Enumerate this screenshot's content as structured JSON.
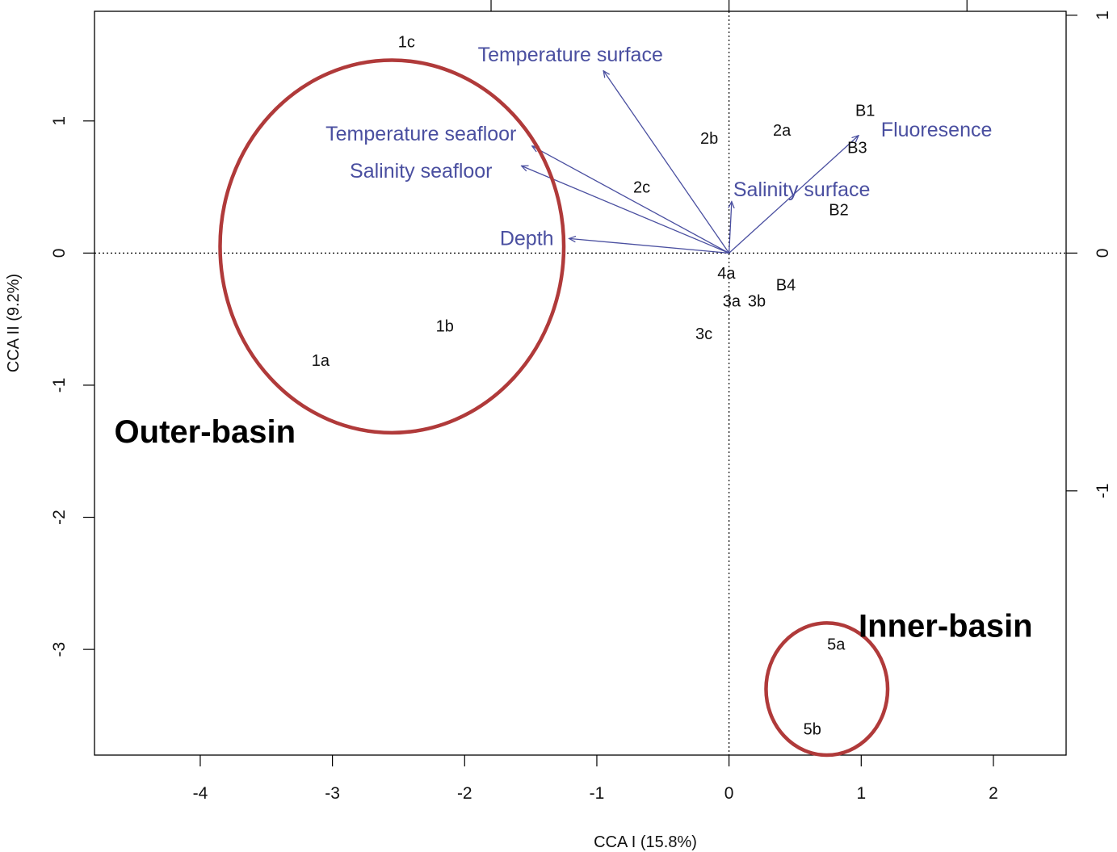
{
  "chart_data": {
    "type": "scatter",
    "title": "",
    "xlabel": "CCA I (15.8%)",
    "ylabel": "CCA II (9.2%)",
    "xlim": [
      -4.8,
      2.55
    ],
    "ylim": [
      -3.8,
      1.83
    ],
    "x_ticks": [
      -4,
      -3,
      -2,
      -1,
      0,
      1,
      2
    ],
    "y_ticks": [
      -3,
      -2,
      -1,
      0,
      1
    ],
    "secondary_axis": {
      "ticks": [
        -1,
        0,
        1
      ],
      "scale_per_unit": 1.8,
      "top_tick_positions": [
        -1.8,
        0,
        1.8
      ]
    },
    "reference_lines": {
      "x": 0,
      "y": 0,
      "style": "dotted"
    },
    "grid": false,
    "sites": [
      {
        "label": "1c",
        "x": -2.44,
        "y": 1.6
      },
      {
        "label": "1b",
        "x": -2.15,
        "y": -0.55
      },
      {
        "label": "1a",
        "x": -3.09,
        "y": -0.81
      },
      {
        "label": "2b",
        "x": -0.15,
        "y": 0.87
      },
      {
        "label": "2a",
        "x": 0.4,
        "y": 0.93
      },
      {
        "label": "2c",
        "x": -0.66,
        "y": 0.5
      },
      {
        "label": "B1",
        "x": 1.03,
        "y": 1.08
      },
      {
        "label": "B3",
        "x": 0.97,
        "y": 0.8
      },
      {
        "label": "B2",
        "x": 0.83,
        "y": 0.33
      },
      {
        "label": "4a",
        "x": -0.02,
        "y": -0.15
      },
      {
        "label": "B4",
        "x": 0.43,
        "y": -0.24
      },
      {
        "label": "3a",
        "x": 0.02,
        "y": -0.36
      },
      {
        "label": "3b",
        "x": 0.21,
        "y": -0.36
      },
      {
        "label": "3c",
        "x": -0.19,
        "y": -0.61
      },
      {
        "label": "5a",
        "x": 0.81,
        "y": -2.96
      },
      {
        "label": "5b",
        "x": 0.63,
        "y": -3.6
      }
    ],
    "vectors": [
      {
        "label": "Temperature surface",
        "x": -0.95,
        "y": 1.38,
        "label_x": -1.2,
        "label_y": 1.5
      },
      {
        "label": "Temperature seafloor",
        "x": -1.49,
        "y": 0.81,
        "label_x": -2.33,
        "label_y": 0.9
      },
      {
        "label": "Salinity seafloor",
        "x": -1.57,
        "y": 0.66,
        "label_x": -2.33,
        "label_y": 0.62
      },
      {
        "label": "Depth",
        "x": -1.21,
        "y": 0.11,
        "label_x": -1.53,
        "label_y": 0.11
      },
      {
        "label": "Salinity surface",
        "x": 0.02,
        "y": 0.39,
        "label_x": 0.55,
        "label_y": 0.48
      },
      {
        "label": "Fluoresence",
        "x": 0.98,
        "y": 0.89,
        "label_x": 1.57,
        "label_y": 0.93
      }
    ],
    "groups": [
      {
        "label": "Outer-basin",
        "cx": -2.55,
        "cy": 0.05,
        "rx": 1.3,
        "ry": 1.41,
        "label_x": -4.65,
        "label_y": -1.35
      },
      {
        "label": "Inner-basin",
        "cx": 0.74,
        "cy": -3.3,
        "rx": 0.46,
        "ry": 0.5,
        "label_x": 0.98,
        "label_y": -2.82
      }
    ],
    "colors": {
      "vectors": "#4a4fa0",
      "group_ellipse": "#b03a3a",
      "text": "#111111"
    }
  }
}
